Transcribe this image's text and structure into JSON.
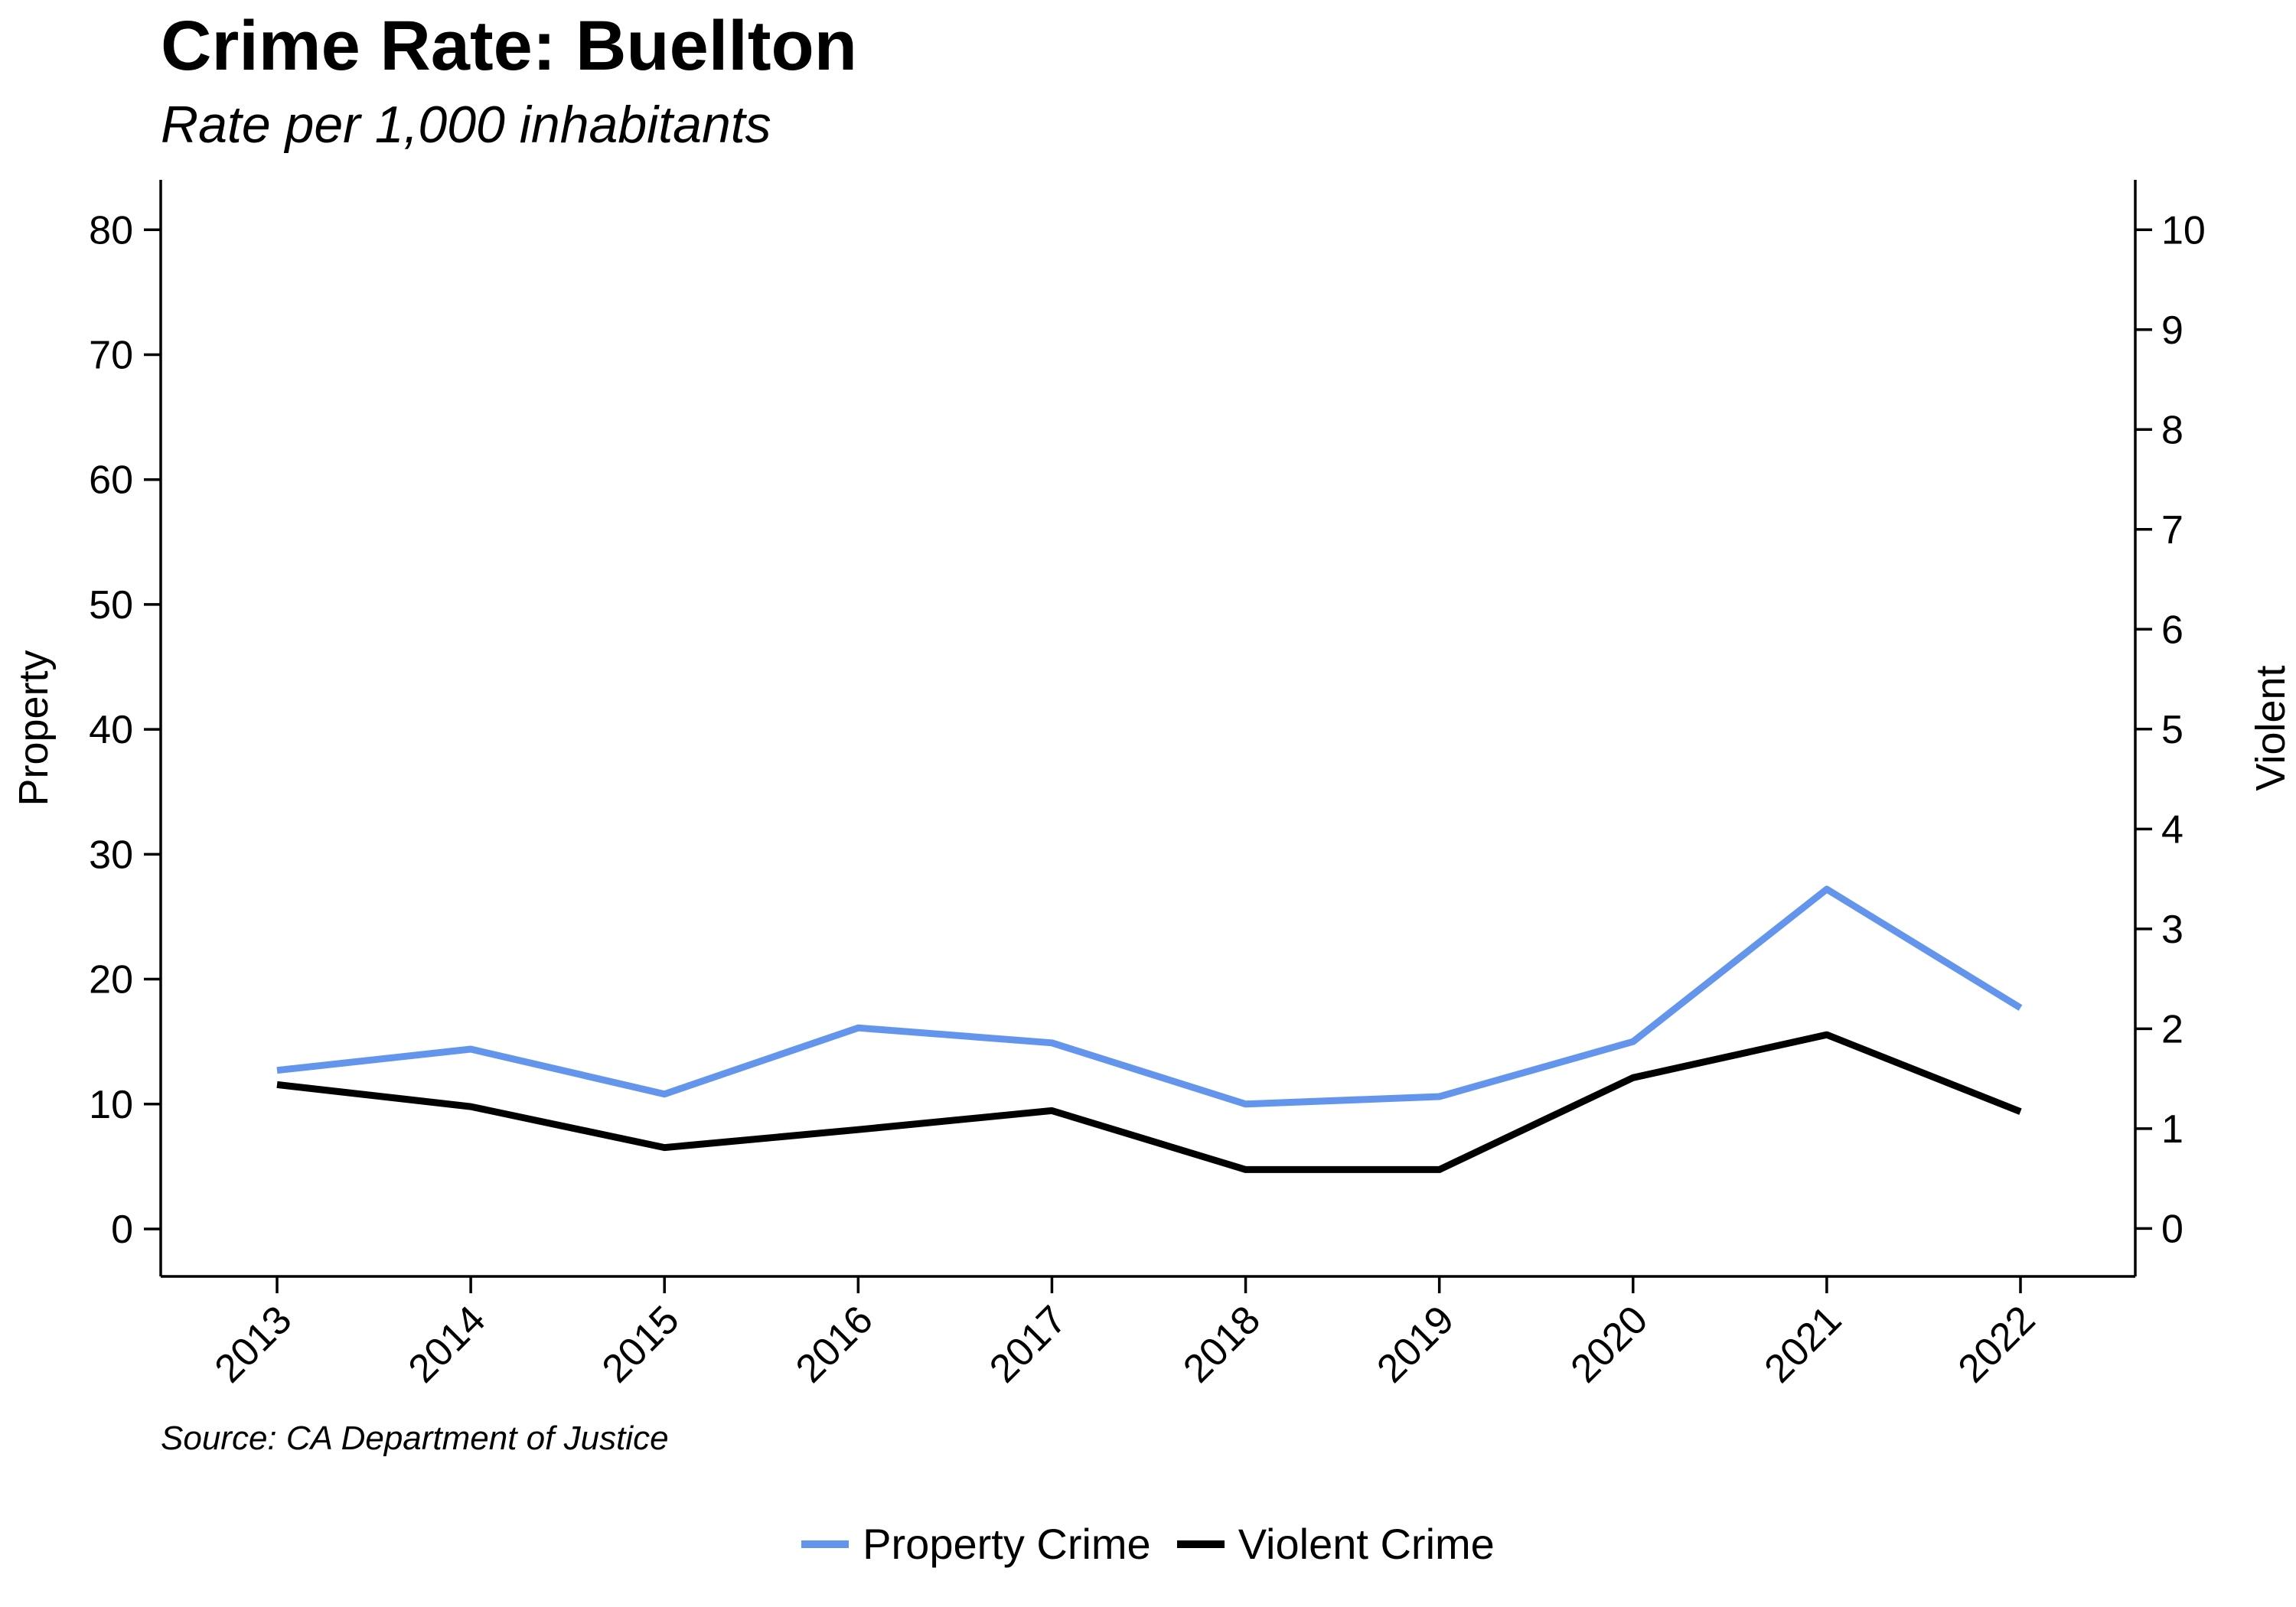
{
  "title": "Crime Rate: Buellton",
  "subtitle": "Rate per 1,000 inhabitants",
  "source": "Source: CA Department of Justice",
  "colors": {
    "property": "#6495ED",
    "violent": "#000000"
  },
  "legend": {
    "placement": "bottom-center",
    "items": [
      "Property Crime",
      "Violent Crime"
    ]
  },
  "chart_data": {
    "type": "line",
    "x": [
      2013,
      2014,
      2015,
      2016,
      2017,
      2018,
      2019,
      2020,
      2021,
      2022
    ],
    "x_tick_labels": [
      "2013",
      "2014",
      "2015",
      "2016",
      "2017",
      "2018",
      "2019",
      "2020",
      "2021",
      "2022"
    ],
    "y_left": {
      "label": "Property",
      "lim": [
        -3.8,
        84
      ],
      "ticks": [
        0,
        10,
        20,
        30,
        40,
        50,
        60,
        70,
        80
      ]
    },
    "y_right": {
      "label": "Violent",
      "lim": [
        -0.48,
        10.5
      ],
      "ticks": [
        0,
        1,
        2,
        3,
        4,
        5,
        6,
        7,
        8,
        9,
        10
      ]
    },
    "grid": false,
    "series": [
      {
        "name": "Property Crime",
        "axis": "left",
        "values": [
          12.7,
          14.4,
          10.8,
          16.1,
          14.9,
          10.0,
          10.6,
          15.0,
          27.2,
          17.7
        ]
      },
      {
        "name": "Violent Crime",
        "axis": "right",
        "values": [
          1.44,
          1.22,
          0.81,
          0.99,
          1.18,
          0.59,
          0.59,
          1.51,
          1.94,
          1.17
        ]
      }
    ]
  }
}
